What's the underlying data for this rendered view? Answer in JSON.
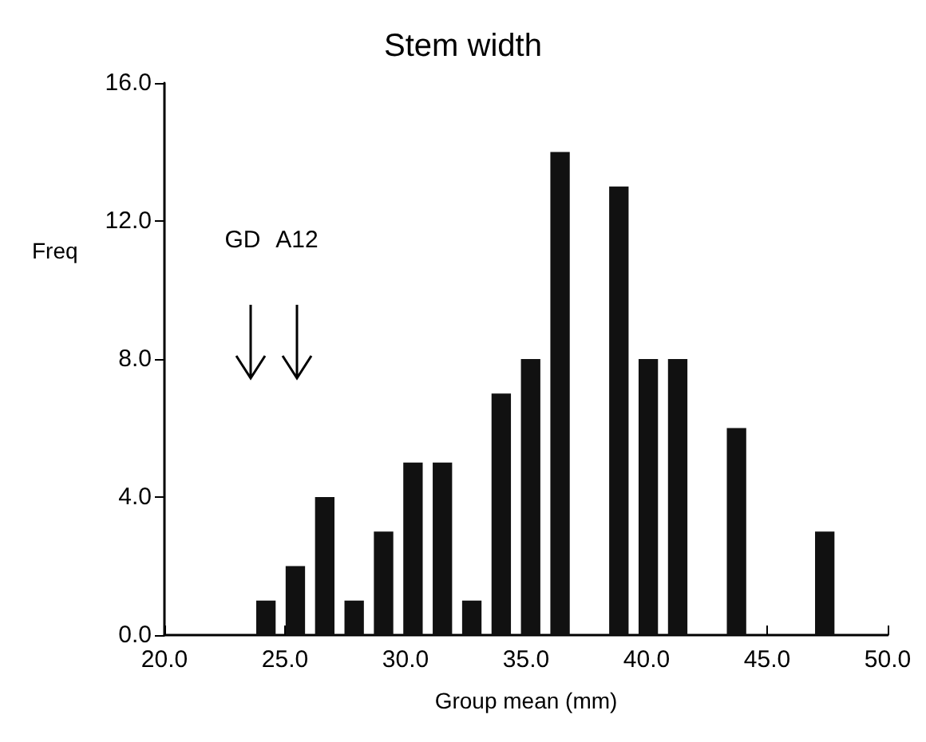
{
  "chart_data": {
    "type": "histogram",
    "title": "Stem width",
    "xlabel": "Group mean (mm)",
    "ylabel": "Freq",
    "bins": [
      23.6,
      24.82,
      26.04,
      27.26,
      28.48,
      29.7,
      30.92,
      32.14,
      33.36,
      34.58,
      35.8,
      37.02,
      38.24,
      39.46,
      40.68,
      41.9,
      43.12,
      44.34,
      45.56,
      46.78,
      48.0
    ],
    "values": [
      1,
      2,
      4,
      1,
      3,
      5,
      5,
      1,
      7,
      8,
      14,
      0,
      13,
      8,
      8,
      0,
      6,
      0,
      0,
      3
    ],
    "color": "#111111",
    "xlim": [
      20,
      50
    ],
    "xticks": [
      {
        "value": 20,
        "label": "20.0"
      },
      {
        "value": 25,
        "label": "25.0"
      },
      {
        "value": 30,
        "label": "30.0"
      },
      {
        "value": 35,
        "label": "35.0"
      },
      {
        "value": 40,
        "label": "40.0"
      },
      {
        "value": 45,
        "label": "45.0"
      },
      {
        "value": 50,
        "label": "50.0"
      }
    ],
    "ylim": [
      0,
      16
    ],
    "yticks": [
      {
        "value": 0,
        "label": "0.0"
      },
      {
        "value": 4,
        "label": "4.0"
      },
      {
        "value": 8,
        "label": "8.0"
      },
      {
        "value": 12,
        "label": "12.0"
      },
      {
        "value": 16,
        "label": "16.0"
      }
    ],
    "annotations": [
      "GD",
      "A12"
    ],
    "grid": false
  }
}
